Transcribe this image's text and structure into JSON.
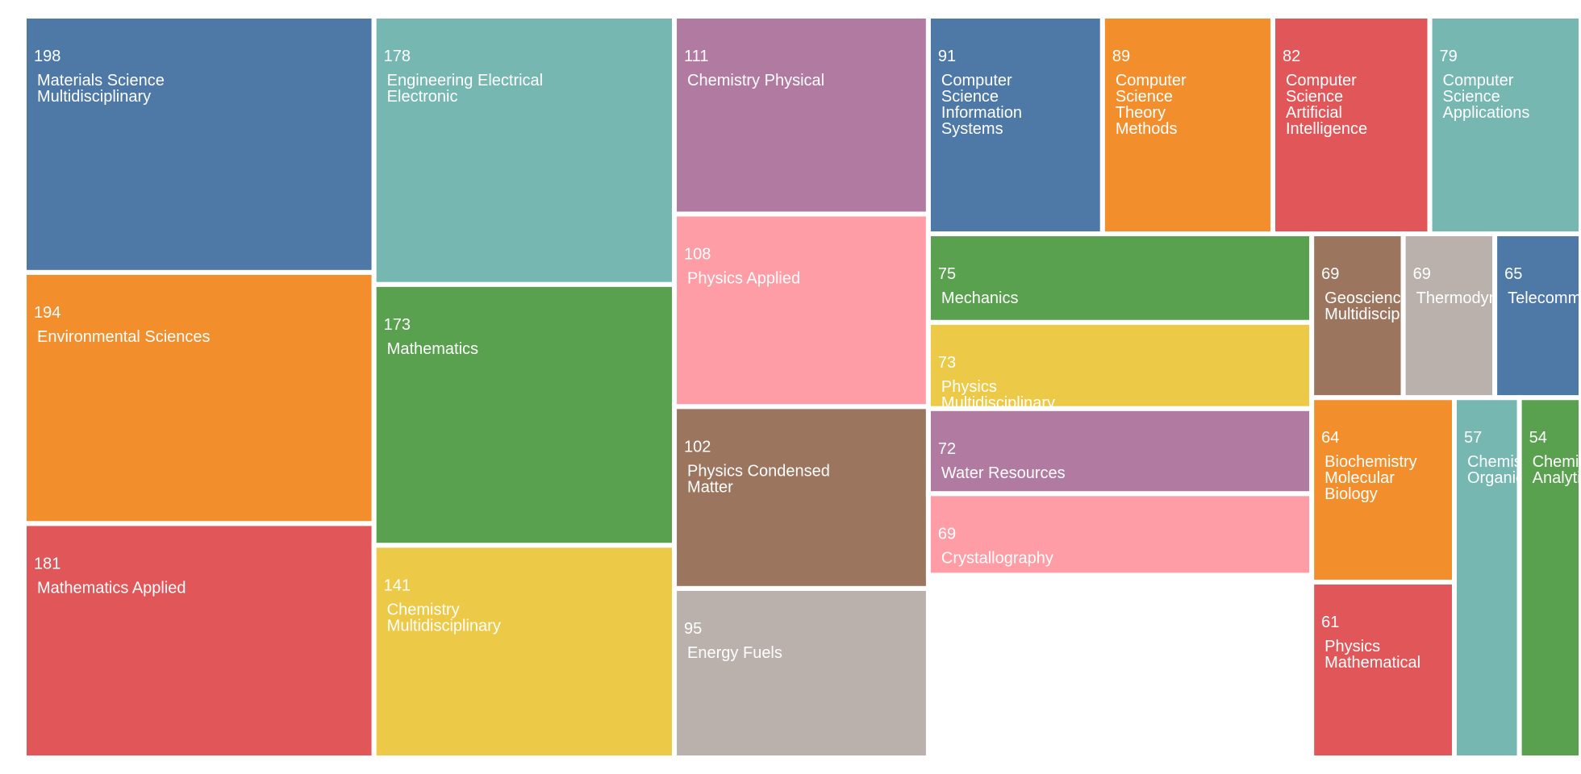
{
  "chart_data": {
    "type": "treemap",
    "title": "",
    "palette": [
      "#4e79a7",
      "#f28e2b",
      "#e15759",
      "#76b7b2",
      "#59a14f",
      "#edc948",
      "#b07aa1",
      "#ff9da7",
      "#9c755f",
      "#bab0ac"
    ],
    "items": [
      {
        "value": 198,
        "lines": [
          "Materials Science",
          "Multidisciplinary"
        ]
      },
      {
        "value": 194,
        "lines": [
          "Environmental Sciences"
        ]
      },
      {
        "value": 181,
        "lines": [
          "Mathematics Applied"
        ]
      },
      {
        "value": 178,
        "lines": [
          "Engineering Electrical",
          "Electronic"
        ]
      },
      {
        "value": 173,
        "lines": [
          "Mathematics"
        ]
      },
      {
        "value": 141,
        "lines": [
          "Chemistry",
          "Multidisciplinary"
        ]
      },
      {
        "value": 111,
        "lines": [
          "Chemistry Physical"
        ]
      },
      {
        "value": 108,
        "lines": [
          "Physics Applied"
        ]
      },
      {
        "value": 102,
        "lines": [
          "Physics Condensed",
          "Matter"
        ]
      },
      {
        "value": 95,
        "lines": [
          "Energy Fuels"
        ]
      },
      {
        "value": 91,
        "lines": [
          "Computer",
          "Science",
          "Information",
          "Systems"
        ]
      },
      {
        "value": 89,
        "lines": [
          "Computer",
          "Science",
          "Theory",
          "Methods"
        ]
      },
      {
        "value": 82,
        "lines": [
          "Computer",
          "Science",
          "Artificial",
          "Intelligence"
        ]
      },
      {
        "value": 79,
        "lines": [
          "Computer",
          "Science",
          "Applications"
        ]
      },
      {
        "value": 75,
        "lines": [
          "Mechanics"
        ]
      },
      {
        "value": 73,
        "lines": [
          "Physics",
          "Multidisciplinary"
        ]
      },
      {
        "value": 72,
        "lines": [
          "Water Resources"
        ]
      },
      {
        "value": 69,
        "lines": [
          "Crystallography"
        ]
      },
      {
        "value": 69,
        "lines": [
          "Geosciences",
          "Multidisciplinary"
        ]
      },
      {
        "value": 69,
        "lines": [
          "Thermodynamics"
        ]
      },
      {
        "value": 65,
        "lines": [
          "Telecommunications"
        ]
      },
      {
        "value": 64,
        "lines": [
          "Biochemistry",
          "Molecular",
          "Biology"
        ]
      },
      {
        "value": 61,
        "lines": [
          "Physics",
          "Mathematical"
        ]
      },
      {
        "value": 57,
        "lines": [
          "Chemistry",
          "Organic"
        ]
      },
      {
        "value": 54,
        "lines": [
          "Chemistry",
          "Analytical"
        ]
      }
    ]
  }
}
